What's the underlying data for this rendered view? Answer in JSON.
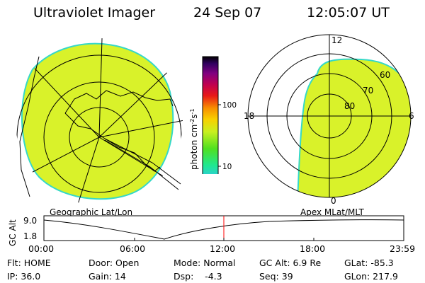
{
  "header": {
    "title": "Ultraviolet Imager",
    "date": "24 Sep 07",
    "time": "12:05:07 UT"
  },
  "colors": {
    "fill": "#d9f22a",
    "edge": "#35d8c8",
    "cursor": "#ff0000"
  },
  "colorbar": {
    "label": "photon cm",
    "label_sup1": "-2",
    "label_mid": "s",
    "label_sup2": "-1",
    "ticks": [
      "100",
      "10"
    ]
  },
  "polar_plot": {
    "mlt_labels": {
      "top": "12",
      "left": "18",
      "right": "6",
      "bottom": "0"
    },
    "lat_labels": [
      "60",
      "70",
      "80"
    ]
  },
  "plot_titles": {
    "left": "Geographic Lat/Lon",
    "right": "Apex MLat/MLT"
  },
  "altitude_strip": {
    "ylabel": "GC Alt",
    "yticks": [
      "9.0",
      "1.8"
    ],
    "xticks": [
      "00:00",
      "06:00",
      "12:00",
      "18:00",
      "23:59"
    ]
  },
  "status": {
    "flt": "Flt: HOME",
    "ip": "IP: 36.0",
    "door": "Door: Open",
    "gain": "Gain: 14",
    "mode": "Mode: Normal",
    "dsp": "Dsp:    -4.3",
    "gc_alt": "GC Alt: 6.9 Re",
    "seq": "Seq: 39",
    "glat": "GLat: -85.3",
    "glon": "GLon: 217.9"
  }
}
